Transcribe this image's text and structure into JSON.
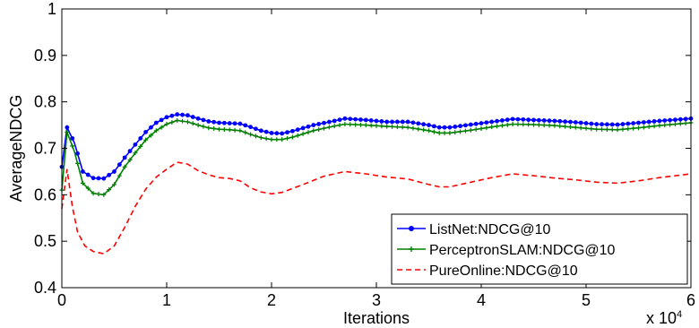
{
  "chart_data": {
    "type": "line",
    "xlabel": "Iterations",
    "ylabel": "AverageNDCG",
    "x_multiplier_label": "x 10",
    "x_multiplier_exponent": "4",
    "xlim": [
      0,
      6
    ],
    "ylim": [
      0.4,
      1
    ],
    "x_ticks": [
      "0",
      "1",
      "2",
      "3",
      "4",
      "5",
      "6"
    ],
    "y_ticks": [
      "0.4",
      "0.5",
      "0.6",
      "0.7",
      "0.8",
      "0.9",
      "1"
    ],
    "grid": false,
    "legend_position": "bottom-right",
    "series": [
      {
        "name": "ListNet:NDCG@10",
        "color": "#0000ff",
        "style": "solid-with-dot-markers",
        "points": [
          [
            0,
            0.66
          ],
          [
            0.05,
            0.745
          ],
          [
            0.12,
            0.712
          ],
          [
            0.2,
            0.65
          ],
          [
            0.3,
            0.636
          ],
          [
            0.4,
            0.635
          ],
          [
            0.5,
            0.65
          ],
          [
            0.6,
            0.68
          ],
          [
            0.7,
            0.708
          ],
          [
            0.8,
            0.735
          ],
          [
            0.9,
            0.755
          ],
          [
            1.0,
            0.767
          ],
          [
            1.1,
            0.773
          ],
          [
            1.2,
            0.771
          ],
          [
            1.3,
            0.764
          ],
          [
            1.4,
            0.758
          ],
          [
            1.5,
            0.755
          ],
          [
            1.6,
            0.754
          ],
          [
            1.7,
            0.753
          ],
          [
            1.8,
            0.746
          ],
          [
            1.9,
            0.738
          ],
          [
            2.0,
            0.733
          ],
          [
            2.1,
            0.732
          ],
          [
            2.2,
            0.737
          ],
          [
            2.4,
            0.75
          ],
          [
            2.6,
            0.759
          ],
          [
            2.7,
            0.764
          ],
          [
            2.9,
            0.761
          ],
          [
            3.1,
            0.757
          ],
          [
            3.3,
            0.757
          ],
          [
            3.5,
            0.75
          ],
          [
            3.6,
            0.745
          ],
          [
            3.7,
            0.745
          ],
          [
            3.9,
            0.751
          ],
          [
            4.1,
            0.757
          ],
          [
            4.3,
            0.763
          ],
          [
            4.5,
            0.761
          ],
          [
            4.7,
            0.759
          ],
          [
            4.9,
            0.756
          ],
          [
            5.1,
            0.752
          ],
          [
            5.3,
            0.751
          ],
          [
            5.5,
            0.755
          ],
          [
            5.7,
            0.759
          ],
          [
            6.0,
            0.764
          ]
        ]
      },
      {
        "name": "PerceptronSLAM:NDCG@10",
        "color": "#008000",
        "style": "solid-with-plus-markers",
        "points": [
          [
            0,
            0.61
          ],
          [
            0.05,
            0.735
          ],
          [
            0.12,
            0.693
          ],
          [
            0.2,
            0.625
          ],
          [
            0.3,
            0.603
          ],
          [
            0.4,
            0.6
          ],
          [
            0.5,
            0.622
          ],
          [
            0.6,
            0.66
          ],
          [
            0.7,
            0.69
          ],
          [
            0.8,
            0.718
          ],
          [
            0.9,
            0.738
          ],
          [
            1.0,
            0.752
          ],
          [
            1.1,
            0.76
          ],
          [
            1.2,
            0.757
          ],
          [
            1.3,
            0.75
          ],
          [
            1.4,
            0.744
          ],
          [
            1.5,
            0.741
          ],
          [
            1.6,
            0.74
          ],
          [
            1.7,
            0.738
          ],
          [
            1.8,
            0.73
          ],
          [
            1.9,
            0.723
          ],
          [
            2.0,
            0.719
          ],
          [
            2.1,
            0.719
          ],
          [
            2.2,
            0.724
          ],
          [
            2.4,
            0.738
          ],
          [
            2.6,
            0.748
          ],
          [
            2.7,
            0.752
          ],
          [
            2.9,
            0.75
          ],
          [
            3.1,
            0.747
          ],
          [
            3.3,
            0.745
          ],
          [
            3.5,
            0.738
          ],
          [
            3.6,
            0.733
          ],
          [
            3.7,
            0.733
          ],
          [
            3.9,
            0.739
          ],
          [
            4.1,
            0.746
          ],
          [
            4.3,
            0.752
          ],
          [
            4.5,
            0.751
          ],
          [
            4.7,
            0.749
          ],
          [
            4.9,
            0.745
          ],
          [
            5.1,
            0.741
          ],
          [
            5.3,
            0.74
          ],
          [
            5.5,
            0.744
          ],
          [
            5.7,
            0.749
          ],
          [
            6.0,
            0.755
          ]
        ]
      },
      {
        "name": "PureOnline:NDCG@10",
        "color": "#ff0000",
        "style": "dashed",
        "points": [
          [
            0,
            0.57
          ],
          [
            0.05,
            0.655
          ],
          [
            0.1,
            0.575
          ],
          [
            0.15,
            0.52
          ],
          [
            0.22,
            0.49
          ],
          [
            0.3,
            0.478
          ],
          [
            0.4,
            0.473
          ],
          [
            0.5,
            0.49
          ],
          [
            0.6,
            0.53
          ],
          [
            0.7,
            0.575
          ],
          [
            0.8,
            0.612
          ],
          [
            0.9,
            0.638
          ],
          [
            1.0,
            0.655
          ],
          [
            1.1,
            0.67
          ],
          [
            1.2,
            0.666
          ],
          [
            1.3,
            0.652
          ],
          [
            1.4,
            0.643
          ],
          [
            1.5,
            0.637
          ],
          [
            1.6,
            0.635
          ],
          [
            1.7,
            0.63
          ],
          [
            1.8,
            0.615
          ],
          [
            1.9,
            0.606
          ],
          [
            2.0,
            0.602
          ],
          [
            2.1,
            0.605
          ],
          [
            2.3,
            0.622
          ],
          [
            2.5,
            0.64
          ],
          [
            2.7,
            0.65
          ],
          [
            2.9,
            0.645
          ],
          [
            3.1,
            0.638
          ],
          [
            3.3,
            0.634
          ],
          [
            3.5,
            0.622
          ],
          [
            3.6,
            0.617
          ],
          [
            3.7,
            0.617
          ],
          [
            3.9,
            0.627
          ],
          [
            4.1,
            0.637
          ],
          [
            4.3,
            0.645
          ],
          [
            4.5,
            0.641
          ],
          [
            4.7,
            0.636
          ],
          [
            4.9,
            0.632
          ],
          [
            5.1,
            0.627
          ],
          [
            5.3,
            0.625
          ],
          [
            5.5,
            0.63
          ],
          [
            5.7,
            0.637
          ],
          [
            6.0,
            0.645
          ]
        ]
      }
    ]
  }
}
